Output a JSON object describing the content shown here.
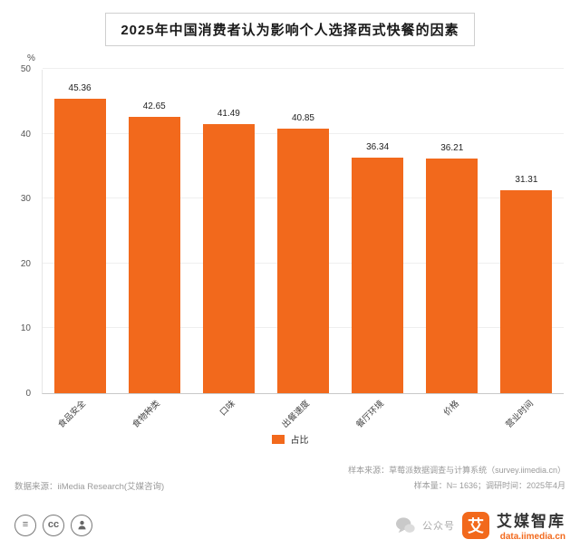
{
  "chart_data": {
    "type": "bar",
    "title": "2025年中国消费者认为影响个人选择西式快餐的因素",
    "categories": [
      "食品安全",
      "食物种类",
      "口味",
      "出餐速度",
      "餐厅环境",
      "价格",
      "营业时间"
    ],
    "values": [
      45.36,
      42.65,
      41.49,
      40.85,
      36.34,
      36.21,
      31.31
    ],
    "ylabel": "%",
    "ylim": [
      0,
      50
    ],
    "yticks": [
      0,
      10,
      20,
      30,
      40,
      50
    ],
    "legend": "占比",
    "legend_position": "bottom",
    "grid": true,
    "bar_color": "#F2691C"
  },
  "footer": {
    "data_source": "数据来源：iiMedia Research(艾媒咨询)",
    "sample_source": "样本来源：草莓派数据调查与计算系统（survey.iimedia.cn）",
    "sample_info": "样本量：N= 1636；调研时间：2025年4月"
  },
  "branding": {
    "wechat_label": "公众号",
    "logo_glyph": "艾",
    "brand_name": "艾媒智库",
    "brand_url": "data.iimedia.cn",
    "brand_color": "#F2691C"
  },
  "license_icons": {
    "nd_glyph": "≡",
    "cc_glyph": "cc"
  }
}
